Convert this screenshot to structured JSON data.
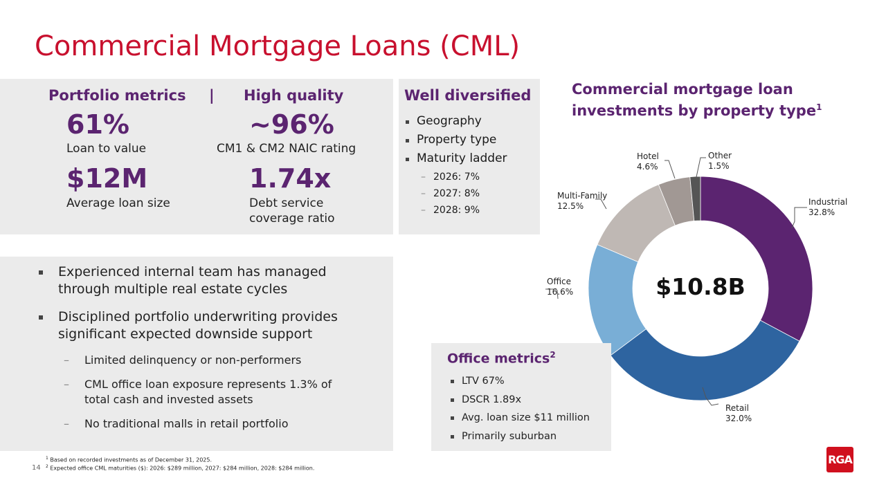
{
  "title": "Commercial Mortgage Loans (CML)",
  "portfolio": {
    "header_left": "Portfolio metrics",
    "separator": "|",
    "header_right": "High quality",
    "metrics": [
      {
        "value": "61%",
        "label": "Loan to value"
      },
      {
        "value": "~96%",
        "label": "CM1 & CM2 NAIC rating"
      },
      {
        "value": "$12M",
        "label": "Average loan size"
      },
      {
        "value": "1.74x",
        "label_line1": "Debt service",
        "label_line2": "coverage ratio"
      }
    ]
  },
  "diversified": {
    "header": "Well diversified",
    "items": [
      "Geography",
      "Property type",
      "Maturity ladder"
    ],
    "subitems": [
      "2026: 7%",
      "2027: 8%",
      "2028: 9%"
    ]
  },
  "bullets": {
    "items": [
      {
        "line1": "Experienced internal team has managed",
        "line2": "through multiple real estate cycles"
      },
      {
        "line1": "Disciplined portfolio underwriting provides",
        "line2": "significant expected downside support"
      }
    ],
    "subitems": [
      {
        "line1": "Limited delinquency or non-performers"
      },
      {
        "line1": "CML office loan exposure represents 1.3% of",
        "line2": "total cash and invested assets"
      },
      {
        "line1": "No traditional malls in retail portfolio"
      }
    ]
  },
  "office_metrics": {
    "header": "Office metrics",
    "sup": "2",
    "items": [
      "LTV 67%",
      "DSCR 1.89x",
      "Avg. loan size $11 million",
      "Primarily suburban"
    ]
  },
  "chart_data": {
    "type": "pie",
    "variant": "donut",
    "title": "Commercial mortgage loan investments by property type",
    "title_line1": "Commercial mortgage loan",
    "title_line2": "investments by property type",
    "title_sup": "1",
    "center_label": "$10.8B",
    "categories": [
      "Industrial",
      "Retail",
      "Office",
      "Multi-Family",
      "Hotel",
      "Other"
    ],
    "values": [
      32.8,
      32.0,
      16.6,
      12.5,
      4.6,
      1.5
    ],
    "labels": [
      "32.8%",
      "32.0%",
      "16.6%",
      "12.5%",
      "4.6%",
      "1.5%"
    ],
    "colors": [
      "#5b2470",
      "#2e64a0",
      "#79aed6",
      "#bfb8b4",
      "#a19894",
      "#555555"
    ],
    "start_angle": "12 o'clock, clockwise",
    "legend": "none (callout labels)"
  },
  "footnotes": {
    "note1": "Based on recorded investments as of December 31, 2025.",
    "note2": "Expected office CML maturities ($): 2026: $289 million, 2027: $284 million, 2028: $284 million."
  },
  "page_number": "14",
  "logo_text": "RGA",
  "colors": {
    "title_red": "#c8102e",
    "accent_purple": "#5b2470",
    "panel_gray": "#ebebeb",
    "logo_red": "#d0101e"
  }
}
